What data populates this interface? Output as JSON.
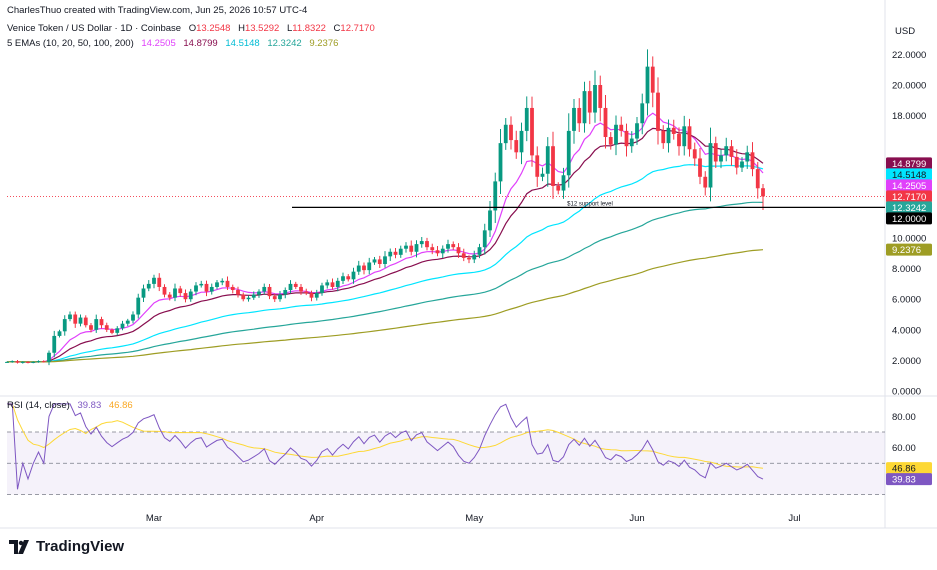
{
  "header": {
    "credit": "CharlesThuo created with TradingView.com, Jun 25, 2026 10:57 UTC-4",
    "symbol": "Venice Token / US Dollar · 1D · Coinbase",
    "ohlc": {
      "o_label": "O",
      "o": "13.2548",
      "h_label": "H",
      "h": "13.5292",
      "l_label": "L",
      "l": "11.8322",
      "c_label": "C",
      "c": "12.7170"
    },
    "ema_title": "5 EMAs (10, 20, 50, 100, 200)",
    "ema_values": [
      "14.2505",
      "14.8799",
      "14.5148",
      "12.3242",
      "9.2376"
    ]
  },
  "rsi_header": {
    "title": "RSI (14, close)",
    "rsi": "39.83",
    "ma": "46.86"
  },
  "currency": "USD",
  "brand": "TradingView",
  "colors": {
    "up": "#089981",
    "down": "#f23645",
    "ema10": "#e040fb",
    "ema20": "#880e4f",
    "ema50": "#00e5ff",
    "ema100": "#26a69a",
    "ema200": "#9e9d24",
    "rsi": "#7e57c2",
    "rsi_ma": "#fdd835",
    "last_price": "#f23645"
  },
  "price_tags": [
    {
      "label": "14.8799",
      "value": 14.88,
      "color": "#880e4f"
    },
    {
      "label": "14.5148",
      "value": 14.51,
      "color": "#00e5ff"
    },
    {
      "label": "14.2505",
      "value": 14.25,
      "color": "#e040fb"
    },
    {
      "label": "12.7170",
      "value": 12.717,
      "color": "#f23645"
    },
    {
      "label": "12.3242",
      "value": 12.32,
      "color": "#26a69a"
    },
    {
      "label": "12.0000",
      "value": 12.0,
      "color": "#000000"
    },
    {
      "label": "9.2376",
      "value": 9.2376,
      "color": "#9e9d24"
    }
  ],
  "rsi_tags": [
    {
      "label": "46.86",
      "value": 46.86,
      "color": "#fdd835"
    },
    {
      "label": "39.83",
      "value": 39.83,
      "color": "#7e57c2"
    }
  ],
  "annotation": {
    "text": "$12 support level",
    "value": 12.0
  },
  "chart_data": {
    "type": "candlestick",
    "title": "Venice Token / US Dollar · 1D · Coinbase",
    "x_axis": {
      "tick_labels": [
        "Mar",
        "Apr",
        "May",
        "Jun",
        "Jul"
      ],
      "tick_days": [
        28,
        59,
        89,
        120,
        150
      ]
    },
    "price_axis": {
      "unit": "USD",
      "tick_labels": [
        "0.0000",
        "2.0000",
        "4.0000",
        "6.0000",
        "8.0000",
        "10.0000",
        "18.0000",
        "20.0000",
        "22.0000"
      ],
      "tick_values": [
        0,
        2,
        4,
        6,
        8,
        10,
        18,
        20,
        22
      ],
      "range": [
        0,
        23.5
      ]
    },
    "rsi_axis": {
      "tick_labels": [
        "80.00",
        "60.00"
      ],
      "tick_values": [
        80,
        60
      ],
      "band": [
        30,
        70
      ],
      "mid": 50,
      "range": [
        20,
        90
      ]
    },
    "candles_note": "daily closes, approximate; starts ~Feb 1 (day 0), last candle ~Jun 25 (day 145)",
    "closes": [
      1.9,
      1.95,
      1.85,
      1.9,
      1.85,
      1.9,
      1.95,
      1.9,
      2.5,
      3.6,
      3.9,
      4.7,
      5.0,
      4.4,
      4.8,
      4.3,
      4.0,
      4.7,
      4.3,
      4.0,
      3.8,
      4.1,
      4.4,
      4.6,
      5.0,
      6.1,
      6.7,
      7.0,
      7.4,
      6.8,
      6.3,
      6.1,
      6.7,
      6.4,
      6.0,
      6.5,
      6.9,
      7.0,
      6.5,
      6.8,
      7.1,
      7.2,
      6.8,
      6.6,
      6.3,
      6.0,
      6.1,
      6.3,
      6.5,
      6.8,
      6.2,
      6.0,
      6.3,
      6.6,
      7.0,
      6.8,
      6.5,
      6.4,
      6.1,
      6.4,
      6.9,
      7.1,
      6.8,
      7.2,
      7.5,
      7.3,
      7.8,
      8.2,
      7.9,
      8.4,
      8.6,
      8.3,
      8.8,
      9.1,
      8.9,
      9.3,
      9.5,
      9.1,
      9.6,
      9.8,
      9.4,
      9.2,
      9.0,
      9.3,
      9.6,
      9.4,
      9.0,
      8.7,
      8.6,
      8.9,
      9.4,
      10.5,
      11.8,
      13.7,
      16.2,
      17.4,
      16.4,
      15.6,
      17.0,
      18.5,
      15.4,
      14.0,
      14.2,
      16.0,
      13.4,
      13.1,
      14.1,
      17.0,
      18.5,
      17.5,
      19.6,
      18.2,
      20.0,
      18.5,
      16.6,
      16.1,
      17.4,
      17.0,
      16.0,
      16.5,
      17.5,
      18.8,
      21.2,
      19.5,
      17.0,
      16.2,
      17.2,
      16.8,
      16.0,
      17.3,
      15.8,
      15.2,
      14.0,
      13.3,
      16.2,
      15.0,
      15.4,
      16.0,
      15.3,
      14.6,
      15.0,
      15.6,
      14.5,
      13.25,
      12.72
    ],
    "ema_series": [
      {
        "name": "EMA 10",
        "period": 10,
        "last": 14.2505
      },
      {
        "name": "EMA 20",
        "period": 20,
        "last": 14.8799
      },
      {
        "name": "EMA 50",
        "period": 50,
        "last": 14.5148
      },
      {
        "name": "EMA 100",
        "period": 100,
        "last": 12.3242
      },
      {
        "name": "EMA 200",
        "period": 200,
        "last": 9.2376
      }
    ],
    "rsi_last": 39.83,
    "rsi_ma_last": 46.86
  }
}
